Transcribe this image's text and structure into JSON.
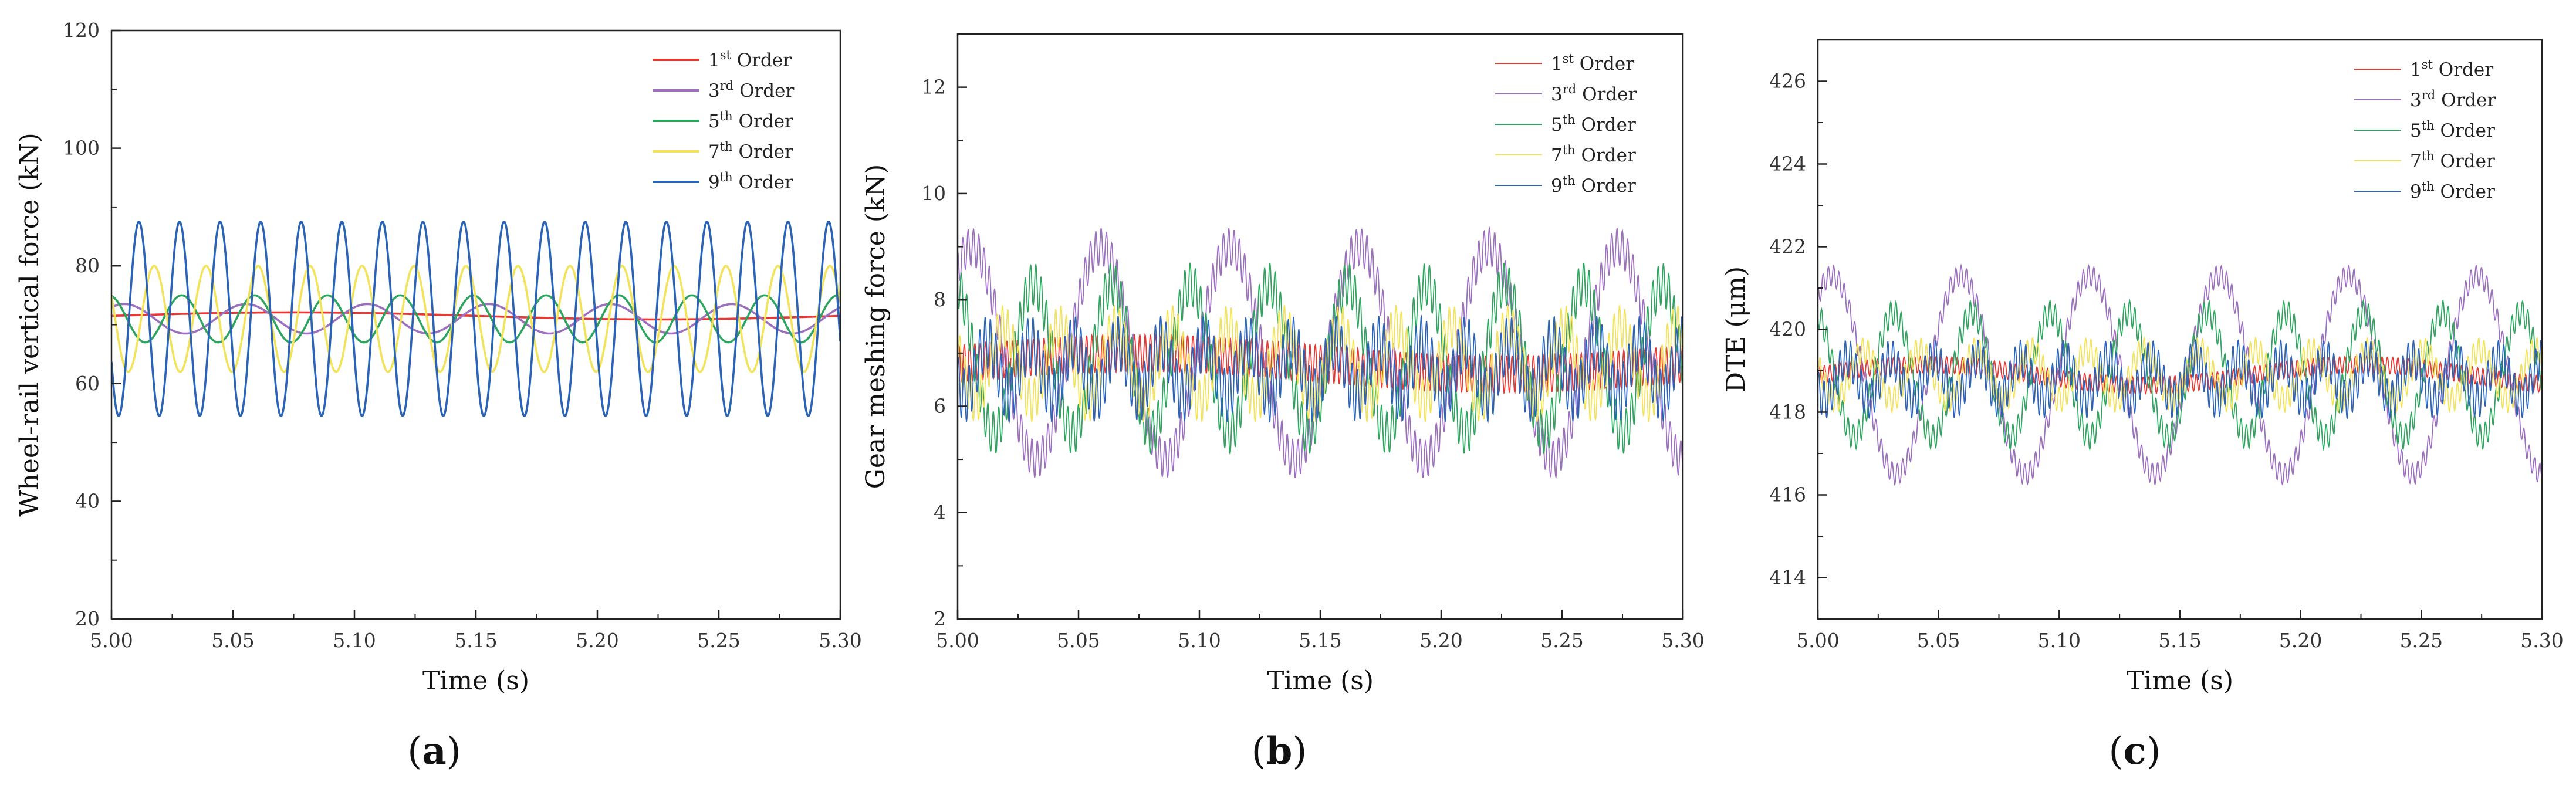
{
  "figure": {
    "panel_labels": [
      "(a)",
      "(b)",
      "(c)"
    ],
    "legend_entries": [
      {
        "num": "1",
        "sup": "st",
        "word": "Order",
        "color": "#e53935"
      },
      {
        "num": "3",
        "sup": "rd",
        "word": "Order",
        "color": "#9c6fbf"
      },
      {
        "num": "5",
        "sup": "th",
        "word": "Order",
        "color": "#2ea55f"
      },
      {
        "num": "7",
        "sup": "th",
        "word": "Order",
        "color": "#f2e35a"
      },
      {
        "num": "9",
        "sup": "th",
        "word": "Order",
        "color": "#2b63b7"
      }
    ]
  },
  "chart_data": [
    {
      "id": "a",
      "type": "line",
      "xlabel": "Time (s)",
      "ylabel": "Wheel-rail vertical force (kN)",
      "xlim": [
        5.0,
        5.3
      ],
      "ylim": [
        20,
        120
      ],
      "xticks": [
        "5.00",
        "5.05",
        "5.10",
        "5.15",
        "5.20",
        "5.25",
        "5.30"
      ],
      "yticks": [
        "20",
        "40",
        "60",
        "80",
        "100",
        "120"
      ],
      "ytick_values": [
        20,
        40,
        60,
        80,
        100,
        120
      ],
      "legend_position": "top-right",
      "series": [
        {
          "name": "1st Order",
          "color": "#e53935",
          "mean": 71.5,
          "amplitude": 0.6,
          "period_s": 0.3,
          "ripple_amp": 0,
          "ripple_period_s": 0.003
        },
        {
          "name": "3rd Order",
          "color": "#9c6fbf",
          "mean": 71,
          "amplitude": 2.5,
          "period_s": 0.05,
          "ripple_amp": 0,
          "ripple_period_s": 0.003
        },
        {
          "name": "5th Order",
          "color": "#2ea55f",
          "mean": 71,
          "amplitude": 4,
          "period_s": 0.03,
          "ripple_amp": 0,
          "ripple_period_s": 0.003
        },
        {
          "name": "7th Order",
          "color": "#f2e35a",
          "mean": 71,
          "amplitude": 9,
          "period_s": 0.0214,
          "ripple_amp": 0,
          "ripple_period_s": 0.003
        },
        {
          "name": "9th Order",
          "color": "#2b63b7",
          "mean": 71,
          "amplitude": 16.5,
          "period_s": 0.0167,
          "ripple_amp": 0,
          "ripple_period_s": 0.003
        }
      ]
    },
    {
      "id": "b",
      "type": "line",
      "xlabel": "Time (s)",
      "ylabel": "Gear meshing force (kN)",
      "xlim": [
        5.0,
        5.3
      ],
      "ylim": [
        2,
        13
      ],
      "xticks": [
        "5.00",
        "5.05",
        "5.10",
        "5.15",
        "5.20",
        "5.25",
        "5.30"
      ],
      "yticks": [
        "2",
        "4",
        "6",
        "8",
        "10",
        "12"
      ],
      "ytick_values": [
        2,
        4,
        6,
        8,
        10,
        12
      ],
      "legend_position": "top-right",
      "series": [
        {
          "name": "1st Order",
          "color": "#e53935",
          "mean": 6.8,
          "amplitude": 0.2,
          "period_s": 0.3,
          "ripple_amp": 0.35,
          "ripple_period_s": 0.0022
        },
        {
          "name": "3rd Order",
          "color": "#9c6fbf",
          "mean": 7.0,
          "amplitude": 2.0,
          "period_s": 0.0535,
          "ripple_amp": 0.35,
          "ripple_period_s": 0.0022
        },
        {
          "name": "5th Order",
          "color": "#2ea55f",
          "mean": 6.9,
          "amplitude": 1.4,
          "period_s": 0.0325,
          "ripple_amp": 0.4,
          "ripple_period_s": 0.0022
        },
        {
          "name": "7th Order",
          "color": "#f2e35a",
          "mean": 6.8,
          "amplitude": 0.7,
          "period_s": 0.0232,
          "ripple_amp": 0.4,
          "ripple_period_s": 0.0022
        },
        {
          "name": "9th Order",
          "color": "#2b63b7",
          "mean": 6.7,
          "amplitude": 0.5,
          "period_s": 0.018,
          "ripple_amp": 0.5,
          "ripple_period_s": 0.0022
        }
      ]
    },
    {
      "id": "c",
      "type": "line",
      "xlabel": "Time (s)",
      "ylabel": "DTE (μm)",
      "xlim": [
        5.0,
        5.3
      ],
      "ylim": [
        413,
        427
      ],
      "xticks": [
        "5.00",
        "5.05",
        "5.10",
        "5.15",
        "5.20",
        "5.25",
        "5.30"
      ],
      "yticks": [
        "414",
        "416",
        "418",
        "420",
        "422",
        "424",
        "426"
      ],
      "ytick_values": [
        414,
        416,
        418,
        420,
        422,
        424,
        426
      ],
      "legend_position": "top-right",
      "series": [
        {
          "name": "1st Order",
          "color": "#e53935",
          "mean": 418.9,
          "amplitude": 0.25,
          "period_s": 0.18,
          "ripple_amp": 0.2,
          "ripple_period_s": 0.0022
        },
        {
          "name": "3rd Order",
          "color": "#9c6fbf",
          "mean": 418.9,
          "amplitude": 2.4,
          "period_s": 0.0535,
          "ripple_amp": 0.25,
          "ripple_period_s": 0.0022
        },
        {
          "name": "5th Order",
          "color": "#2ea55f",
          "mean": 418.9,
          "amplitude": 1.5,
          "period_s": 0.0325,
          "ripple_amp": 0.3,
          "ripple_period_s": 0.0022
        },
        {
          "name": "7th Order",
          "color": "#f2e35a",
          "mean": 418.9,
          "amplitude": 0.6,
          "period_s": 0.0232,
          "ripple_amp": 0.3,
          "ripple_period_s": 0.0022
        },
        {
          "name": "9th Order",
          "color": "#2b63b7",
          "mean": 418.8,
          "amplitude": 0.5,
          "period_s": 0.018,
          "ripple_amp": 0.45,
          "ripple_period_s": 0.0022
        }
      ]
    }
  ]
}
